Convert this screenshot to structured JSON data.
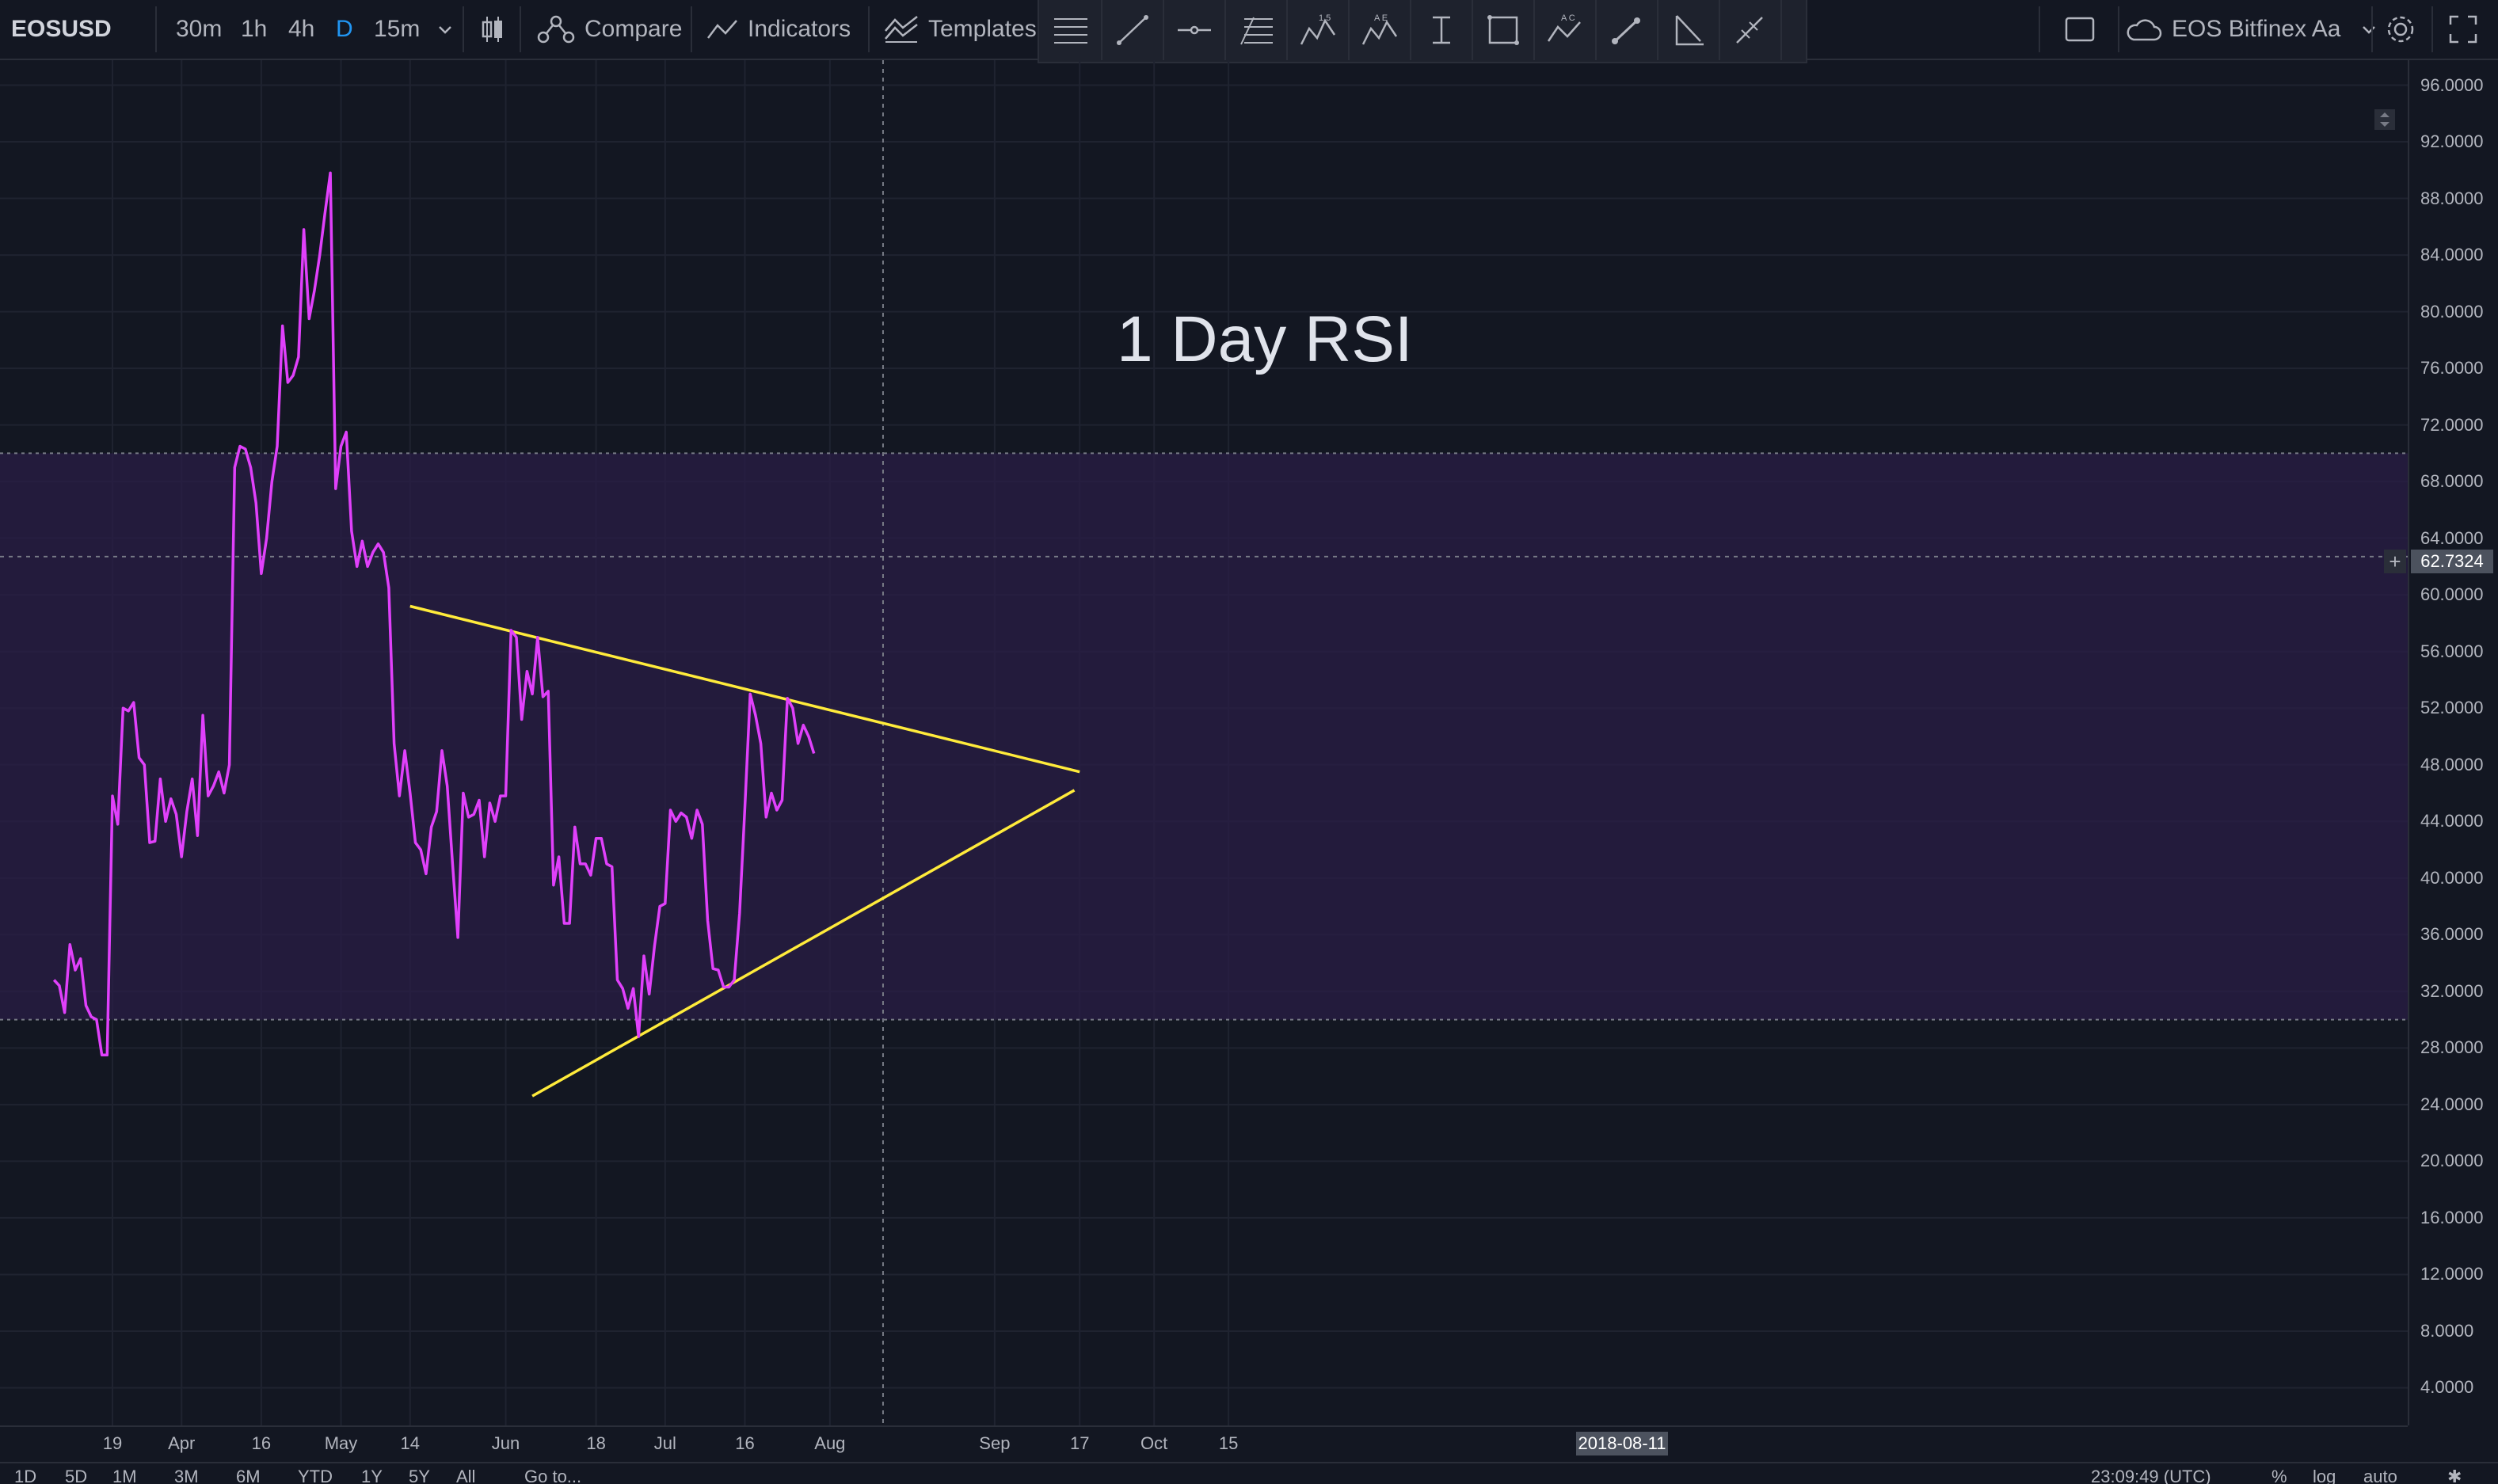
{
  "toolbar": {
    "symbol": "EOSUSD",
    "intervals": [
      "30m",
      "1h",
      "4h",
      "D",
      "15m"
    ],
    "active_interval": "D",
    "compare_label": "Compare",
    "indicators_label": "Indicators",
    "templates_label": "Templates",
    "study_label": "EOS Bitfinex Aa",
    "icons": [
      "candles-icon",
      "compare-icon",
      "indicators-icon",
      "templates-icon",
      "square-icon",
      "cloud-icon",
      "gear-icon",
      "fullscreen-icon"
    ]
  },
  "drawing_tools": [
    "horizontal-lines-icon",
    "trend-line-icon",
    "horizontal-ray-icon",
    "fib-icon",
    "xabcd-pattern-icon",
    "abcde-pattern-icon",
    "measure-icon",
    "rectangle-icon",
    "abc-pattern-icon",
    "brush-icon",
    "triangle-icon",
    "pencil-icon"
  ],
  "annotation_text": "1 Day RSI",
  "crosshair_date": "2018-08-11",
  "current_price_label": "62.7324",
  "bottombar": {
    "ranges": [
      "1D",
      "5D",
      "1M",
      "3M",
      "6M",
      "YTD",
      "1Y",
      "5Y",
      "All"
    ],
    "goto_label": "Go to...",
    "time_label": "23:09:49 (UTC)",
    "pct_label": "%",
    "log_label": "log",
    "auto_label": "auto"
  },
  "colors": {
    "rsi_line": "#e040fb",
    "trend_line": "#ffeb3b",
    "band_fill": "#2a1e45",
    "background": "#131722"
  },
  "chart_data": {
    "type": "line",
    "ylim": [
      0,
      98
    ],
    "yticks": [
      "96.0000",
      "92.0000",
      "88.0000",
      "84.0000",
      "80.0000",
      "76.0000",
      "72.0000",
      "68.0000",
      "64.0000",
      "60.0000",
      "56.0000",
      "52.0000",
      "48.0000",
      "44.0000",
      "40.0000",
      "36.0000",
      "32.0000",
      "28.0000",
      "24.0000",
      "20.0000",
      "16.0000",
      "12.0000",
      "8.0000",
      "4.0000"
    ],
    "xticks": [
      {
        "label": "19",
        "day": 0
      },
      {
        "label": "Apr",
        "day": 13
      },
      {
        "label": "16",
        "day": 28
      },
      {
        "label": "May",
        "day": 43
      },
      {
        "label": "14",
        "day": 56
      },
      {
        "label": "Jun",
        "day": 74
      },
      {
        "label": "18",
        "day": 91
      },
      {
        "label": "Jul",
        "day": 104
      },
      {
        "label": "16",
        "day": 119
      },
      {
        "label": "Aug",
        "day": 135
      },
      {
        "label": "Sep",
        "day": 166
      },
      {
        "label": "17",
        "day": 182
      },
      {
        "label": "Oct",
        "day": 196
      },
      {
        "label": "15",
        "day": 210
      }
    ],
    "band": [
      30,
      70
    ],
    "crosshair_day": 145,
    "crosshair_value": 62.7,
    "series": [
      {
        "values": [
          [
            -11,
            32.8
          ],
          [
            -10,
            32.4
          ],
          [
            -9,
            30.5
          ],
          [
            -8,
            35.3
          ],
          [
            -7,
            33.5
          ],
          [
            -6,
            34.3
          ],
          [
            -5,
            31
          ],
          [
            -4,
            30.2
          ],
          [
            -3,
            30
          ],
          [
            -2,
            27.5
          ],
          [
            -1,
            27.5
          ],
          [
            0,
            45.8
          ],
          [
            1,
            43.8
          ],
          [
            2,
            52
          ],
          [
            3,
            51.8
          ],
          [
            4,
            52.4
          ],
          [
            5,
            48.5
          ],
          [
            6,
            48
          ],
          [
            7,
            42.5
          ],
          [
            8,
            42.6
          ],
          [
            9,
            47
          ],
          [
            10,
            44
          ],
          [
            11,
            45.6
          ],
          [
            12,
            44.5
          ],
          [
            13,
            41.5
          ],
          [
            14,
            44.7
          ],
          [
            15,
            47
          ],
          [
            16,
            43
          ],
          [
            17,
            51.5
          ],
          [
            18,
            45.8
          ],
          [
            19,
            46.5
          ],
          [
            20,
            47.5
          ],
          [
            21,
            46
          ],
          [
            22,
            48
          ],
          [
            23,
            69
          ],
          [
            24,
            70.5
          ],
          [
            25,
            70.3
          ],
          [
            26,
            69
          ],
          [
            27,
            66.5
          ],
          [
            28,
            61.5
          ],
          [
            29,
            64
          ],
          [
            30,
            68
          ],
          [
            31,
            70.5
          ],
          [
            32,
            79
          ],
          [
            33,
            75
          ],
          [
            34,
            75.5
          ],
          [
            35,
            76.8
          ],
          [
            36,
            85.8
          ],
          [
            37,
            79.5
          ],
          [
            38,
            81.5
          ],
          [
            39,
            84
          ],
          [
            40,
            87
          ],
          [
            41,
            89.8
          ],
          [
            42,
            67.5
          ],
          [
            43,
            70.5
          ],
          [
            44,
            71.5
          ],
          [
            45,
            64.5
          ],
          [
            46,
            62
          ],
          [
            47,
            63.8
          ],
          [
            48,
            62
          ],
          [
            49,
            63
          ],
          [
            50,
            63.6
          ],
          [
            51,
            63
          ],
          [
            52,
            60.5
          ],
          [
            53,
            49.5
          ],
          [
            54,
            45.8
          ],
          [
            55,
            49
          ],
          [
            56,
            46
          ],
          [
            57,
            42.5
          ],
          [
            58,
            42
          ],
          [
            59,
            40.3
          ],
          [
            60,
            43.6
          ],
          [
            61,
            44.7
          ],
          [
            62,
            49
          ],
          [
            63,
            46.5
          ],
          [
            64,
            41
          ],
          [
            65,
            35.8
          ],
          [
            66,
            46
          ],
          [
            67,
            44.3
          ],
          [
            68,
            44.5
          ],
          [
            69,
            45.5
          ],
          [
            70,
            41.5
          ],
          [
            71,
            45.3
          ],
          [
            72,
            44
          ],
          [
            73,
            45.8
          ],
          [
            74,
            45.8
          ],
          [
            75,
            57.5
          ],
          [
            76,
            57
          ],
          [
            77,
            51.2
          ],
          [
            78,
            54.6
          ],
          [
            79,
            53
          ],
          [
            80,
            57
          ],
          [
            81,
            52.8
          ],
          [
            82,
            53.2
          ],
          [
            83,
            39.5
          ],
          [
            84,
            41.5
          ],
          [
            85,
            36.8
          ],
          [
            86,
            36.8
          ],
          [
            87,
            43.6
          ],
          [
            88,
            41
          ],
          [
            89,
            41
          ],
          [
            90,
            40.2
          ],
          [
            91,
            42.8
          ],
          [
            92,
            42.8
          ],
          [
            93,
            41
          ],
          [
            94,
            40.8
          ],
          [
            95,
            32.8
          ],
          [
            96,
            32.2
          ],
          [
            97,
            30.8
          ],
          [
            98,
            32.2
          ],
          [
            99,
            28.8
          ],
          [
            100,
            34.5
          ],
          [
            101,
            31.8
          ],
          [
            102,
            35.2
          ],
          [
            103,
            38
          ],
          [
            104,
            38.2
          ],
          [
            105,
            44.8
          ],
          [
            106,
            44
          ],
          [
            107,
            44.6
          ],
          [
            108,
            44.3
          ],
          [
            109,
            42.8
          ],
          [
            110,
            44.8
          ],
          [
            111,
            43.8
          ],
          [
            112,
            37
          ],
          [
            113,
            33.6
          ],
          [
            114,
            33.5
          ],
          [
            115,
            32.3
          ],
          [
            116,
            32.3
          ],
          [
            117,
            32.8
          ],
          [
            118,
            37.5
          ],
          [
            119,
            45
          ],
          [
            120,
            53
          ],
          [
            121,
            51.5
          ],
          [
            122,
            49.5
          ],
          [
            123,
            44.3
          ],
          [
            124,
            46
          ],
          [
            125,
            44.8
          ],
          [
            126,
            45.5
          ],
          [
            127,
            52.7
          ],
          [
            128,
            52
          ],
          [
            129,
            49.5
          ],
          [
            130,
            50.8
          ],
          [
            131,
            50
          ],
          [
            132,
            48.8
          ]
        ]
      }
    ],
    "trend_lines": [
      {
        "from": [
          56,
          59.2
        ],
        "to": [
          182,
          47.5
        ]
      },
      {
        "from": [
          79,
          24.6
        ],
        "to": [
          181,
          46.2
        ]
      }
    ]
  }
}
